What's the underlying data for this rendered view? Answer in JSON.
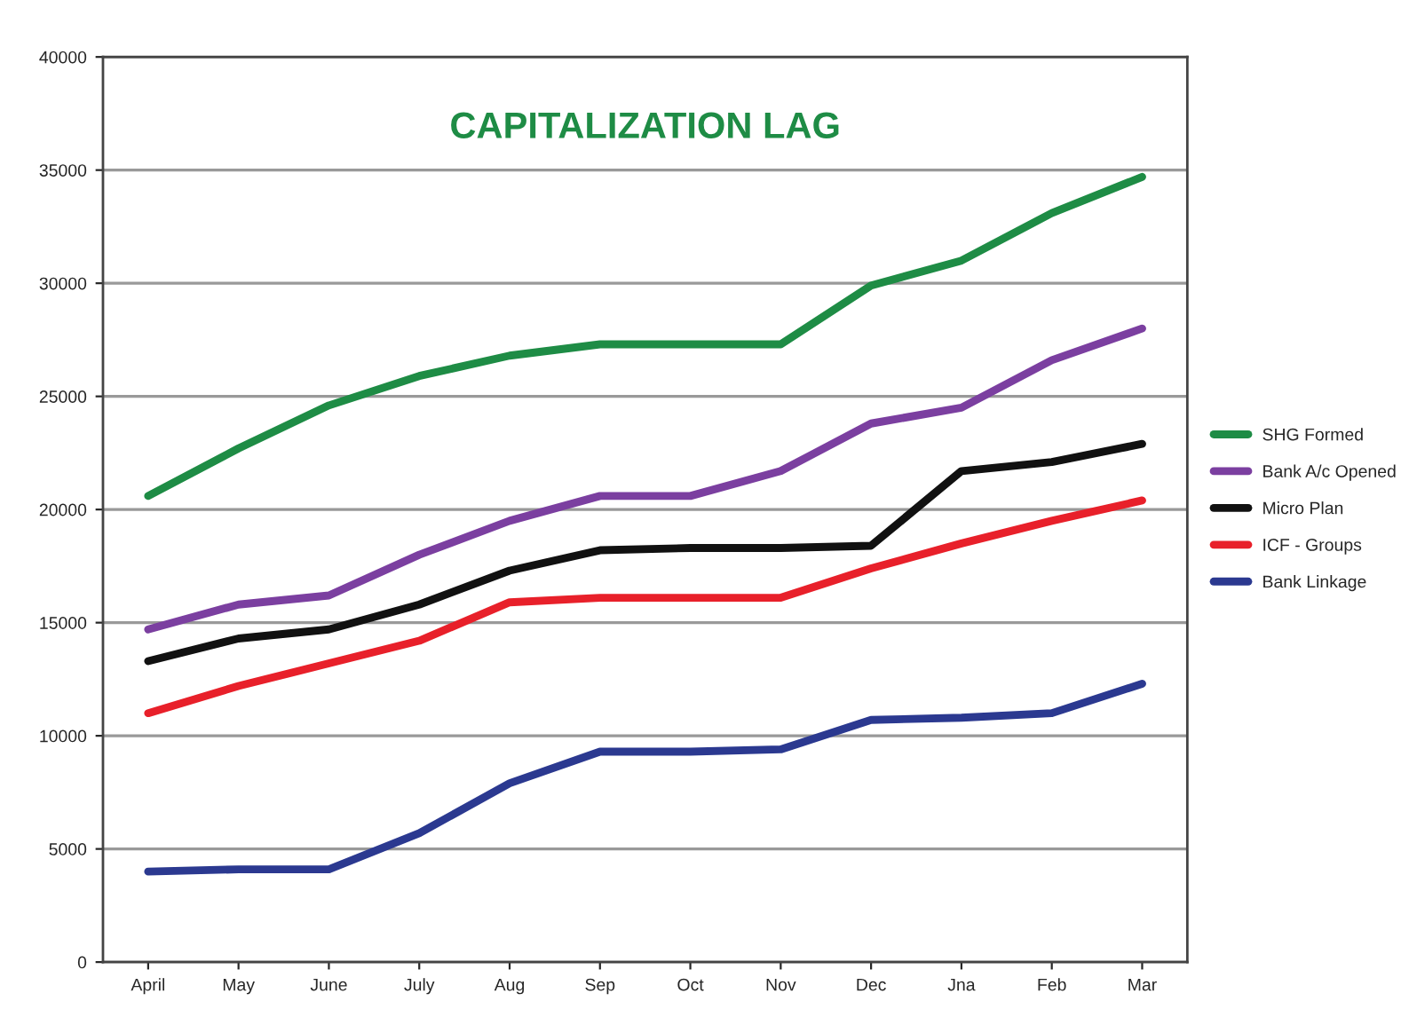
{
  "chart_data": {
    "type": "line",
    "title": "CAPITALIZATION LAG",
    "categories": [
      "April",
      "May",
      "June",
      "July",
      "Aug",
      "Sep",
      "Oct",
      "Nov",
      "Dec",
      "Jna",
      "Feb",
      "Mar"
    ],
    "series": [
      {
        "name": "SHG Formed",
        "color": "#1e8c45",
        "values": [
          20600,
          22700,
          24600,
          25900,
          26800,
          27300,
          27300,
          27300,
          29900,
          31000,
          33100,
          34700
        ]
      },
      {
        "name": "Bank A/c Opened",
        "color": "#7b3fa0",
        "values": [
          14700,
          15800,
          16200,
          18000,
          19500,
          20600,
          20600,
          21700,
          23800,
          24500,
          26600,
          28000
        ]
      },
      {
        "name": "Micro Plan",
        "color": "#111111",
        "values": [
          13300,
          14300,
          14700,
          15800,
          17300,
          18200,
          18300,
          18300,
          18400,
          21700,
          22100,
          22900
        ]
      },
      {
        "name": "ICF - Groups",
        "color": "#e8202a",
        "values": [
          11000,
          12200,
          13200,
          14200,
          15900,
          16100,
          16100,
          16100,
          17400,
          18500,
          19500,
          20400
        ]
      },
      {
        "name": "Bank Linkage",
        "color": "#2b3990",
        "values": [
          4000,
          4100,
          4100,
          5700,
          7900,
          9300,
          9300,
          9400,
          10700,
          10800,
          11000,
          12300
        ]
      }
    ],
    "ylim": [
      0,
      40000
    ],
    "yticks": [
      0,
      5000,
      10000,
      15000,
      20000,
      25000,
      30000,
      35000,
      40000
    ],
    "grid": "y",
    "legend": "right",
    "marker": "none",
    "line_style": "solid"
  }
}
